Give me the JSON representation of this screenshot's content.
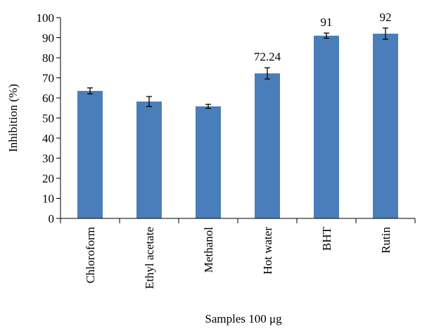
{
  "chart_data": {
    "type": "bar",
    "categories": [
      "Chloroform",
      "Ethyl acetate",
      "Methanol",
      "Hot water",
      "BHT",
      "Rutin"
    ],
    "values": [
      63.5,
      58.2,
      55.8,
      72.24,
      91,
      92
    ],
    "errors": [
      1.5,
      2.5,
      1.0,
      2.8,
      1.3,
      2.8
    ],
    "data_labels": [
      "",
      "",
      "",
      "72.24",
      "91",
      "92"
    ],
    "title": "",
    "xlabel": "Samples 100 μg",
    "ylabel": "Inhibition (%)",
    "ylim": [
      0,
      100
    ],
    "yticks": [
      0,
      10,
      20,
      30,
      40,
      50,
      60,
      70,
      80,
      90,
      100
    ],
    "grid": false,
    "legend": "none",
    "bar_color": "#4a7ebb"
  }
}
